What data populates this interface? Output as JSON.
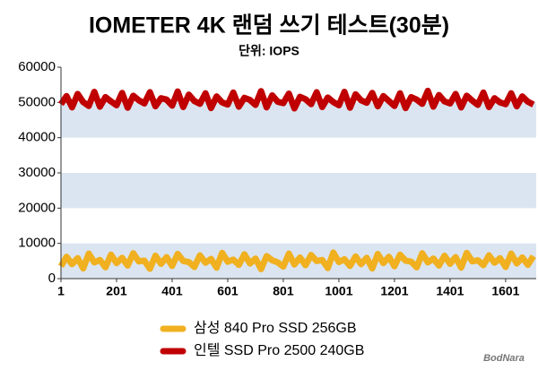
{
  "chart_data": {
    "type": "line",
    "title": "IOMETER 4K 랜덤 쓰기 테스트(30분)",
    "subtitle": "단위: IOPS",
    "watermark": "BodNara",
    "x": [
      1,
      21,
      41,
      61,
      81,
      101,
      121,
      141,
      161,
      181,
      201,
      221,
      241,
      261,
      281,
      301,
      321,
      341,
      361,
      381,
      401,
      421,
      441,
      461,
      481,
      501,
      521,
      541,
      561,
      581,
      601,
      621,
      641,
      661,
      681,
      701,
      721,
      741,
      761,
      781,
      801,
      821,
      841,
      861,
      881,
      901,
      921,
      941,
      961,
      981,
      1001,
      1021,
      1041,
      1061,
      1081,
      1101,
      1121,
      1141,
      1161,
      1181,
      1201,
      1221,
      1241,
      1261,
      1281,
      1301,
      1321,
      1341,
      1361,
      1381,
      1401,
      1421,
      1441,
      1461,
      1481,
      1501,
      1521,
      1541,
      1561,
      1581,
      1601,
      1621,
      1641,
      1661,
      1681,
      1701
    ],
    "series": [
      {
        "name": "삼성 840 Pro SSD 256GB",
        "color": "#f0b020",
        "values": [
          3500,
          6200,
          4100,
          5800,
          2900,
          7100,
          4600,
          5300,
          3200,
          6800,
          4400,
          5900,
          3700,
          7200,
          4900,
          5100,
          2800,
          6500,
          4200,
          6100,
          3600,
          7000,
          5000,
          4700,
          3300,
          6600,
          4500,
          5600,
          3100,
          7300,
          4800,
          5400,
          3900,
          6900,
          4300,
          5700,
          2700,
          6400,
          5200,
          4600,
          3400,
          7100,
          4000,
          6000,
          3800,
          6700,
          5000,
          5300,
          3000,
          7400,
          4700,
          5500,
          3600,
          6300,
          4100,
          5900,
          2900,
          7000,
          4400,
          6200,
          3500,
          6800,
          5100,
          4800,
          3200,
          7200,
          4600,
          5700,
          3700,
          6500,
          4200,
          6100,
          3100,
          7300,
          4900,
          5200,
          3800,
          6600,
          4500,
          5800,
          3300,
          7100,
          4300,
          6000,
          3900,
          6400
        ]
      },
      {
        "name": "인텔 SSD Pro 2500 240GB",
        "color": "#c00000",
        "values": [
          49500,
          51800,
          48600,
          52400,
          50100,
          49000,
          53000,
          48800,
          51500,
          50300,
          49200,
          52700,
          48500,
          51900,
          50600,
          49700,
          52900,
          48900,
          51200,
          50800,
          49100,
          53100,
          48700,
          52200,
          50400,
          49600,
          52600,
          48400,
          51700,
          50000,
          49400,
          52800,
          48800,
          51300,
          50700,
          49300,
          53200,
          48600,
          52000,
          50200,
          49800,
          52500,
          48300,
          51600,
          50900,
          49500,
          52900,
          48700,
          51400,
          50100,
          49200,
          53000,
          48500,
          52300,
          50600,
          49900,
          52700,
          48900,
          51800,
          50400,
          49000,
          52600,
          48400,
          51500,
          50800,
          49600,
          53300,
          48800,
          52100,
          50300,
          49700,
          52400,
          48600,
          51900,
          50500,
          49300,
          52800,
          48700,
          51200,
          50000,
          49500,
          52600,
          48900,
          51700,
          50200,
          49400
        ]
      }
    ],
    "xlim": [
      1,
      1711
    ],
    "xticks": [
      1,
      201,
      401,
      601,
      801,
      1001,
      1201,
      1401,
      1601
    ],
    "ylim": [
      0,
      60000
    ],
    "yticks": [
      0,
      10000,
      20000,
      30000,
      40000,
      50000,
      60000
    ],
    "grid_bands": true,
    "band_color": "#dbe5f1"
  }
}
